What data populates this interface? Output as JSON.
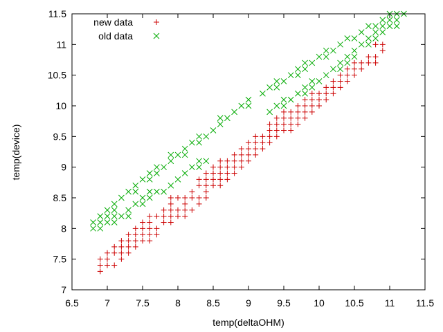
{
  "chart_data": {
    "type": "scatter",
    "xlabel": "temp(deltaOHM)",
    "ylabel": "temp(device)",
    "xlim": [
      6.5,
      11.5
    ],
    "ylim": [
      7,
      11.5
    ],
    "xticks": [
      "6.5",
      "7",
      "7.5",
      "8",
      "8.5",
      "9",
      "9.5",
      "10",
      "10.5",
      "11",
      "11.5"
    ],
    "yticks": [
      "7",
      "7.5",
      "8",
      "8.5",
      "9",
      "9.5",
      "10",
      "10.5",
      "11",
      "11.5"
    ],
    "legend_position": "top-left",
    "grid": false,
    "series": [
      {
        "name": "new data",
        "marker": "plus",
        "color": "#cc0000",
        "points": [
          [
            6.9,
            7.3
          ],
          [
            6.9,
            7.4
          ],
          [
            6.9,
            7.5
          ],
          [
            7.0,
            7.4
          ],
          [
            7.0,
            7.5
          ],
          [
            7.0,
            7.6
          ],
          [
            7.1,
            7.4
          ],
          [
            7.1,
            7.6
          ],
          [
            7.1,
            7.7
          ],
          [
            7.2,
            7.5
          ],
          [
            7.2,
            7.6
          ],
          [
            7.2,
            7.7
          ],
          [
            7.2,
            7.8
          ],
          [
            7.3,
            7.6
          ],
          [
            7.3,
            7.7
          ],
          [
            7.3,
            7.8
          ],
          [
            7.3,
            7.9
          ],
          [
            7.4,
            7.7
          ],
          [
            7.4,
            7.8
          ],
          [
            7.4,
            7.9
          ],
          [
            7.4,
            8.0
          ],
          [
            7.5,
            7.8
          ],
          [
            7.5,
            7.9
          ],
          [
            7.5,
            8.0
          ],
          [
            7.5,
            8.1
          ],
          [
            7.6,
            7.8
          ],
          [
            7.6,
            7.9
          ],
          [
            7.6,
            8.0
          ],
          [
            7.6,
            8.1
          ],
          [
            7.6,
            8.2
          ],
          [
            7.7,
            7.9
          ],
          [
            7.7,
            8.0
          ],
          [
            7.7,
            8.2
          ],
          [
            7.8,
            8.1
          ],
          [
            7.8,
            8.2
          ],
          [
            7.8,
            8.3
          ],
          [
            7.9,
            8.1
          ],
          [
            7.9,
            8.2
          ],
          [
            7.9,
            8.3
          ],
          [
            7.9,
            8.4
          ],
          [
            7.9,
            8.5
          ],
          [
            8.0,
            8.2
          ],
          [
            8.0,
            8.3
          ],
          [
            8.0,
            8.5
          ],
          [
            8.1,
            8.2
          ],
          [
            8.1,
            8.3
          ],
          [
            8.1,
            8.4
          ],
          [
            8.1,
            8.5
          ],
          [
            8.2,
            8.3
          ],
          [
            8.2,
            8.5
          ],
          [
            8.2,
            8.6
          ],
          [
            8.3,
            8.4
          ],
          [
            8.3,
            8.5
          ],
          [
            8.3,
            8.7
          ],
          [
            8.3,
            8.8
          ],
          [
            8.4,
            8.5
          ],
          [
            8.4,
            8.6
          ],
          [
            8.4,
            8.7
          ],
          [
            8.4,
            8.8
          ],
          [
            8.4,
            8.9
          ],
          [
            8.5,
            8.7
          ],
          [
            8.5,
            8.8
          ],
          [
            8.5,
            8.9
          ],
          [
            8.5,
            9.0
          ],
          [
            8.6,
            8.7
          ],
          [
            8.6,
            8.8
          ],
          [
            8.6,
            8.9
          ],
          [
            8.6,
            9.0
          ],
          [
            8.6,
            9.1
          ],
          [
            8.7,
            8.8
          ],
          [
            8.7,
            8.9
          ],
          [
            8.7,
            9.0
          ],
          [
            8.7,
            9.1
          ],
          [
            8.8,
            8.9
          ],
          [
            8.8,
            9.0
          ],
          [
            8.8,
            9.1
          ],
          [
            8.8,
            9.2
          ],
          [
            8.9,
            9.0
          ],
          [
            8.9,
            9.1
          ],
          [
            8.9,
            9.2
          ],
          [
            8.9,
            9.3
          ],
          [
            9.0,
            9.1
          ],
          [
            9.0,
            9.2
          ],
          [
            9.0,
            9.3
          ],
          [
            9.0,
            9.4
          ],
          [
            9.1,
            9.2
          ],
          [
            9.1,
            9.3
          ],
          [
            9.1,
            9.4
          ],
          [
            9.1,
            9.5
          ],
          [
            9.2,
            9.3
          ],
          [
            9.2,
            9.4
          ],
          [
            9.2,
            9.5
          ],
          [
            9.3,
            9.4
          ],
          [
            9.3,
            9.5
          ],
          [
            9.3,
            9.6
          ],
          [
            9.3,
            9.7
          ],
          [
            9.4,
            9.5
          ],
          [
            9.4,
            9.6
          ],
          [
            9.4,
            9.7
          ],
          [
            9.4,
            9.8
          ],
          [
            9.5,
            9.6
          ],
          [
            9.5,
            9.7
          ],
          [
            9.5,
            9.8
          ],
          [
            9.5,
            9.9
          ],
          [
            9.6,
            9.6
          ],
          [
            9.6,
            9.7
          ],
          [
            9.6,
            9.8
          ],
          [
            9.6,
            9.9
          ],
          [
            9.7,
            9.7
          ],
          [
            9.7,
            9.8
          ],
          [
            9.7,
            9.9
          ],
          [
            9.7,
            10.0
          ],
          [
            9.8,
            9.8
          ],
          [
            9.8,
            9.9
          ],
          [
            9.8,
            10.0
          ],
          [
            9.8,
            10.1
          ],
          [
            9.9,
            9.9
          ],
          [
            9.9,
            10.0
          ],
          [
            9.9,
            10.1
          ],
          [
            9.9,
            10.2
          ],
          [
            10.0,
            10.0
          ],
          [
            10.0,
            10.1
          ],
          [
            10.0,
            10.2
          ],
          [
            10.1,
            10.1
          ],
          [
            10.1,
            10.2
          ],
          [
            10.1,
            10.3
          ],
          [
            10.2,
            10.2
          ],
          [
            10.2,
            10.3
          ],
          [
            10.2,
            10.4
          ],
          [
            10.3,
            10.3
          ],
          [
            10.3,
            10.4
          ],
          [
            10.3,
            10.5
          ],
          [
            10.4,
            10.4
          ],
          [
            10.4,
            10.5
          ],
          [
            10.4,
            10.6
          ],
          [
            10.5,
            10.5
          ],
          [
            10.5,
            10.6
          ],
          [
            10.5,
            10.7
          ],
          [
            10.6,
            10.6
          ],
          [
            10.6,
            10.7
          ],
          [
            10.7,
            10.7
          ],
          [
            10.7,
            10.8
          ],
          [
            10.8,
            10.7
          ],
          [
            10.8,
            10.8
          ],
          [
            10.8,
            11.0
          ],
          [
            10.9,
            10.9
          ],
          [
            10.9,
            11.0
          ]
        ]
      },
      {
        "name": "old data",
        "marker": "cross",
        "color": "#00aa00",
        "points": [
          [
            6.8,
            8.0
          ],
          [
            6.8,
            8.1
          ],
          [
            6.9,
            8.0
          ],
          [
            6.9,
            8.1
          ],
          [
            6.9,
            8.2
          ],
          [
            7.0,
            8.1
          ],
          [
            7.0,
            8.2
          ],
          [
            7.0,
            8.3
          ],
          [
            7.1,
            8.1
          ],
          [
            7.1,
            8.2
          ],
          [
            7.1,
            8.3
          ],
          [
            7.1,
            8.4
          ],
          [
            7.2,
            8.2
          ],
          [
            7.2,
            8.5
          ],
          [
            7.3,
            8.2
          ],
          [
            7.3,
            8.3
          ],
          [
            7.3,
            8.6
          ],
          [
            7.4,
            8.4
          ],
          [
            7.4,
            8.6
          ],
          [
            7.4,
            8.7
          ],
          [
            7.5,
            8.4
          ],
          [
            7.5,
            8.5
          ],
          [
            7.5,
            8.8
          ],
          [
            7.6,
            8.5
          ],
          [
            7.6,
            8.6
          ],
          [
            7.6,
            8.8
          ],
          [
            7.6,
            8.9
          ],
          [
            7.7,
            8.6
          ],
          [
            7.7,
            8.9
          ],
          [
            7.7,
            9.0
          ],
          [
            7.8,
            8.6
          ],
          [
            7.8,
            9.0
          ],
          [
            7.9,
            8.7
          ],
          [
            7.9,
            9.1
          ],
          [
            7.9,
            9.2
          ],
          [
            8.0,
            8.8
          ],
          [
            8.0,
            9.2
          ],
          [
            8.1,
            8.9
          ],
          [
            8.1,
            9.2
          ],
          [
            8.1,
            9.3
          ],
          [
            8.2,
            9.0
          ],
          [
            8.2,
            9.4
          ],
          [
            8.3,
            9.0
          ],
          [
            8.3,
            9.1
          ],
          [
            8.3,
            9.4
          ],
          [
            8.3,
            9.5
          ],
          [
            8.4,
            9.1
          ],
          [
            8.4,
            9.5
          ],
          [
            8.5,
            9.6
          ],
          [
            8.6,
            9.7
          ],
          [
            8.6,
            9.8
          ],
          [
            8.7,
            9.8
          ],
          [
            8.8,
            9.9
          ],
          [
            8.9,
            10.0
          ],
          [
            9.0,
            10.0
          ],
          [
            9.0,
            10.1
          ],
          [
            9.2,
            10.2
          ],
          [
            9.3,
            9.9
          ],
          [
            9.3,
            10.3
          ],
          [
            9.4,
            10.0
          ],
          [
            9.4,
            10.3
          ],
          [
            9.4,
            10.4
          ],
          [
            9.5,
            10.0
          ],
          [
            9.5,
            10.1
          ],
          [
            9.5,
            10.4
          ],
          [
            9.6,
            10.1
          ],
          [
            9.6,
            10.5
          ],
          [
            9.7,
            10.2
          ],
          [
            9.7,
            10.5
          ],
          [
            9.7,
            10.6
          ],
          [
            9.8,
            10.2
          ],
          [
            9.8,
            10.3
          ],
          [
            9.8,
            10.6
          ],
          [
            9.8,
            10.7
          ],
          [
            9.9,
            10.3
          ],
          [
            9.9,
            10.4
          ],
          [
            9.9,
            10.7
          ],
          [
            10.0,
            10.4
          ],
          [
            10.0,
            10.8
          ],
          [
            10.1,
            10.5
          ],
          [
            10.1,
            10.8
          ],
          [
            10.1,
            10.9
          ],
          [
            10.2,
            10.6
          ],
          [
            10.2,
            10.9
          ],
          [
            10.3,
            10.6
          ],
          [
            10.3,
            10.7
          ],
          [
            10.3,
            11.0
          ],
          [
            10.4,
            10.7
          ],
          [
            10.4,
            10.8
          ],
          [
            10.4,
            11.1
          ],
          [
            10.5,
            10.8
          ],
          [
            10.5,
            10.9
          ],
          [
            10.5,
            11.1
          ],
          [
            10.6,
            11.0
          ],
          [
            10.6,
            11.2
          ],
          [
            10.7,
            11.0
          ],
          [
            10.7,
            11.1
          ],
          [
            10.7,
            11.3
          ],
          [
            10.8,
            11.1
          ],
          [
            10.8,
            11.2
          ],
          [
            10.8,
            11.3
          ],
          [
            10.9,
            11.2
          ],
          [
            10.9,
            11.3
          ],
          [
            10.9,
            11.4
          ],
          [
            11.0,
            11.3
          ],
          [
            11.0,
            11.4
          ],
          [
            11.0,
            11.5
          ],
          [
            11.1,
            11.3
          ],
          [
            11.1,
            11.4
          ],
          [
            11.1,
            11.5
          ],
          [
            11.2,
            11.5
          ]
        ]
      }
    ]
  }
}
